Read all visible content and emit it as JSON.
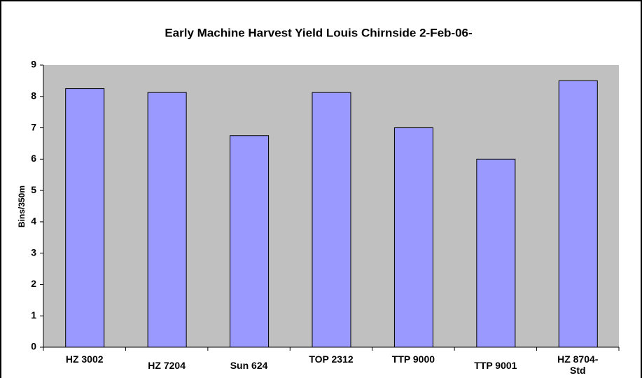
{
  "chart_data": {
    "type": "bar",
    "title": "Early Machine Harvest Yield Louis Chirnside 2-Feb-06-",
    "y_label": "Bins/350m",
    "categories": [
      "HZ 3002",
      "HZ 7204",
      "Sun 624",
      "TOP 2312",
      "TTP 9000",
      "TTP 9001",
      "HZ 8704-Std"
    ],
    "values": [
      8.25,
      8.125,
      6.75,
      8.125,
      7,
      6,
      8.5
    ],
    "color": "#9999ff",
    "ylim": [
      0,
      9
    ],
    "yticks": [
      0,
      1,
      2,
      3,
      4,
      5,
      6,
      7,
      8,
      9
    ],
    "grid": false
  }
}
